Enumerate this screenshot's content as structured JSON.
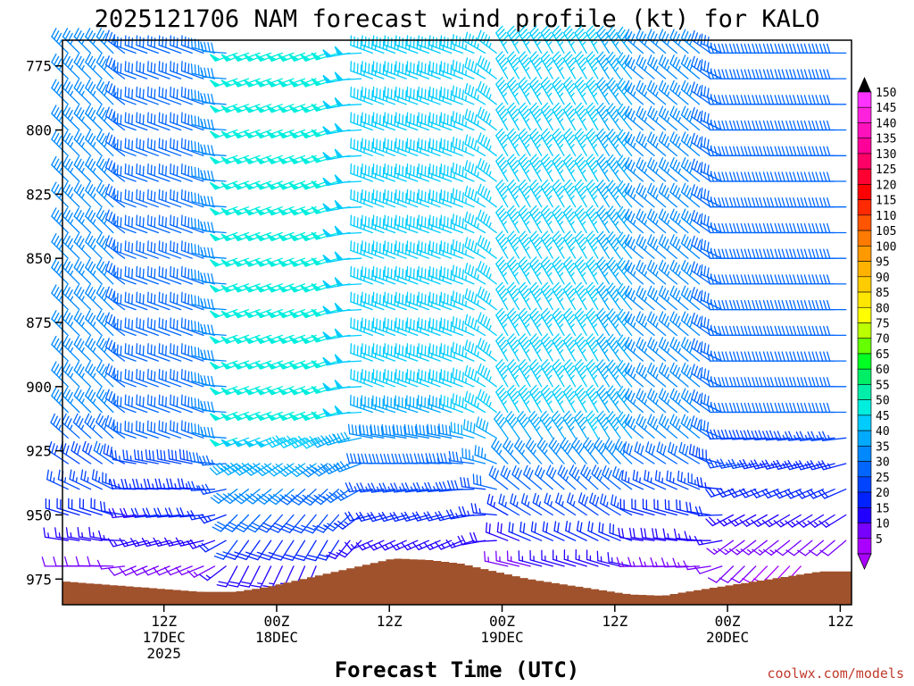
{
  "chart_data": {
    "type": "wind_profile",
    "title": "2025121706 NAM forecast wind profile (kt) for KALO",
    "xlabel": "Forecast Time (UTC)",
    "ylabel": "",
    "credit": "coolwx.com/models",
    "y_axis": {
      "unit": "hPa",
      "range": [
        985,
        765
      ],
      "ticks": [
        775,
        800,
        825,
        850,
        875,
        900,
        925,
        950,
        975
      ]
    },
    "x_axis": {
      "range_hours": [
        -3,
        67
      ],
      "ticks": [
        {
          "hour": 6,
          "line1": "12Z",
          "line2": "17DEC",
          "line3": "2025"
        },
        {
          "hour": 16,
          "line1": "00Z",
          "line2": "18DEC",
          "line3": ""
        },
        {
          "hour": 26,
          "line1": "12Z",
          "line2": "",
          "line3": ""
        },
        {
          "hour": 36,
          "line1": "00Z",
          "line2": "19DEC",
          "line3": ""
        },
        {
          "hour": 46,
          "line1": "12Z",
          "line2": "",
          "line3": ""
        },
        {
          "hour": 56,
          "line1": "00Z",
          "line2": "20DEC",
          "line3": ""
        },
        {
          "hour": 66,
          "line1": "12Z",
          "line2": "",
          "line3": ""
        }
      ]
    },
    "colorbar": {
      "labels": [
        150,
        145,
        140,
        135,
        130,
        125,
        120,
        115,
        110,
        105,
        100,
        95,
        90,
        85,
        80,
        75,
        70,
        65,
        60,
        55,
        50,
        45,
        40,
        35,
        30,
        25,
        20,
        15,
        10,
        5
      ],
      "colors": [
        "#ff33ff",
        "#ff22dd",
        "#ff11bb",
        "#ff0099",
        "#ff0066",
        "#ff0033",
        "#ff0000",
        "#ff2a00",
        "#ff5500",
        "#ff7a00",
        "#ff9900",
        "#ffb300",
        "#ffcc00",
        "#ffe600",
        "#ffff00",
        "#bbff00",
        "#66ff00",
        "#00ff22",
        "#00ee66",
        "#00eeaa",
        "#00eedd",
        "#00ccff",
        "#00aaff",
        "#0088ff",
        "#0066ff",
        "#0044ff",
        "#0022ff",
        "#2200ff",
        "#7700ff",
        "#aa00ff"
      ]
    },
    "terrain": {
      "color": "#a0522d",
      "surface_pressure": [
        [
          -3,
          976
        ],
        [
          0,
          977
        ],
        [
          3,
          978
        ],
        [
          6,
          979
        ],
        [
          9,
          980
        ],
        [
          12,
          980
        ],
        [
          15,
          978
        ],
        [
          18,
          975
        ],
        [
          21,
          972
        ],
        [
          24,
          969
        ],
        [
          26,
          967
        ],
        [
          29,
          967.5
        ],
        [
          32,
          969
        ],
        [
          35,
          972
        ],
        [
          38,
          975
        ],
        [
          41,
          977
        ],
        [
          44,
          979
        ],
        [
          47,
          981
        ],
        [
          50,
          981.5
        ],
        [
          52,
          980
        ],
        [
          55,
          978
        ],
        [
          58,
          976
        ],
        [
          61,
          974
        ],
        [
          64,
          972
        ],
        [
          67,
          972
        ]
      ]
    },
    "wind_levels_hPa": [
      770,
      780,
      790,
      800,
      810,
      820,
      830,
      840,
      850,
      860,
      870,
      880,
      890,
      900,
      910,
      920,
      930,
      940,
      950,
      960,
      970,
      980
    ],
    "wind_time_step_hours": 1,
    "wind_regimes": [
      {
        "from_hour": -3,
        "to_hour": 3,
        "from_direction_deg": 315,
        "speed_kt": 35
      },
      {
        "from_hour": 3,
        "to_hour": 12,
        "from_direction_deg": 290,
        "speed_kt": 32
      },
      {
        "from_hour": 12,
        "to_hour": 24,
        "from_direction_deg": 250,
        "speed_kt": 50
      },
      {
        "from_hour": 24,
        "to_hour": 36,
        "from_direction_deg": 290,
        "speed_kt": 45
      },
      {
        "from_hour": 36,
        "to_hour": 48,
        "from_direction_deg": 330,
        "speed_kt": 45
      },
      {
        "from_hour": 48,
        "to_hour": 56,
        "from_direction_deg": 310,
        "speed_kt": 35
      },
      {
        "from_hour": 56,
        "to_hour": 67,
        "from_direction_deg": 270,
        "speed_kt": 30
      }
    ]
  }
}
